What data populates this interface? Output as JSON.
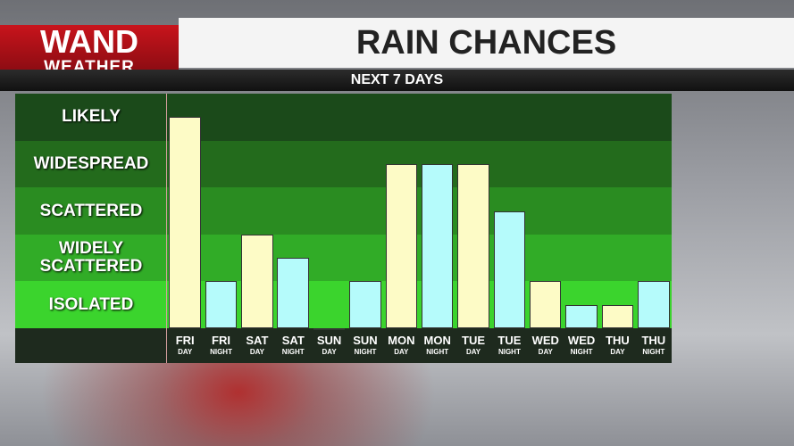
{
  "logo": {
    "line1": "WAND",
    "line2": "WEATHER"
  },
  "chart_data": {
    "type": "bar",
    "title": "RAIN CHANCES",
    "subtitle": "NEXT 7 DAYS",
    "categories": [
      [
        "FRI",
        "DAY"
      ],
      [
        "FRI",
        "NIGHT"
      ],
      [
        "SAT",
        "DAY"
      ],
      [
        "SAT",
        "NIGHT"
      ],
      [
        "SUN",
        "DAY"
      ],
      [
        "SUN",
        "NIGHT"
      ],
      [
        "MON",
        "DAY"
      ],
      [
        "MON",
        "NIGHT"
      ],
      [
        "TUE",
        "DAY"
      ],
      [
        "TUE",
        "NIGHT"
      ],
      [
        "WED",
        "DAY"
      ],
      [
        "WED",
        "NIGHT"
      ],
      [
        "THU",
        "DAY"
      ],
      [
        "THU",
        "NIGHT"
      ]
    ],
    "values": [
      4.5,
      1,
      2,
      1.5,
      0,
      1,
      3.5,
      3.5,
      3.5,
      2.5,
      1,
      0.5,
      0.5,
      1
    ],
    "colors": [
      "#fdfbc6",
      "#b5fbfb",
      "#fdfbc6",
      "#b5fbfb",
      "#fdfbc6",
      "#b5fbfb",
      "#fdfbc6",
      "#b5fbfb",
      "#fdfbc6",
      "#b5fbfb",
      "#fdfbc6",
      "#b5fbfb",
      "#fdfbc6",
      "#b5fbfb"
    ],
    "ylim": [
      0,
      5
    ],
    "yticks": [
      {
        "value": 0.5,
        "label": "ISOLATED"
      },
      {
        "value": 1.5,
        "label": "WIDELY SCATTERED"
      },
      {
        "value": 2.5,
        "label": "SCATTERED"
      },
      {
        "value": 3.5,
        "label": "WIDESPREAD"
      },
      {
        "value": 4.5,
        "label": "LIKELY"
      }
    ],
    "band_colors": [
      "#3bd42d",
      "#31ac27",
      "#2a8c21",
      "#236b1c",
      "#1b4a1a"
    ]
  }
}
